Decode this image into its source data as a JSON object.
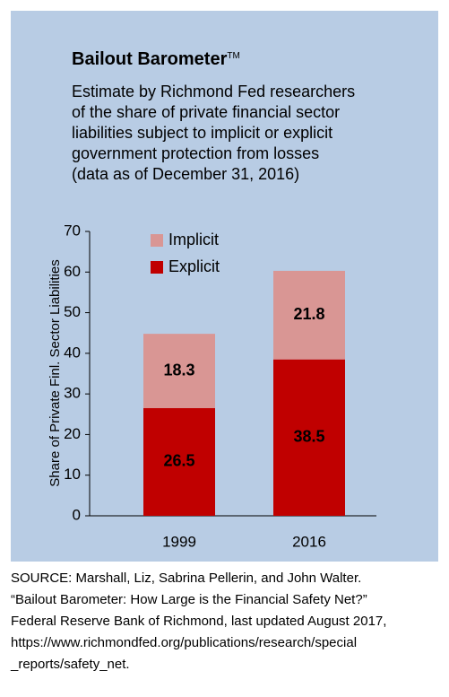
{
  "chart_data": {
    "type": "stacked_bar",
    "title": "Bailout Barometer",
    "title_mark": "TM",
    "subtitle": [
      "Estimate by Richmond Fed researchers",
      "of the share of private financial sector",
      "liabilities subject to implicit or explicit",
      "government protection from losses",
      "(data as of December 31, 2016)"
    ],
    "y_label": "Share of Private Finl. Sector Liabilities",
    "categories": [
      "1999",
      "2016"
    ],
    "series": [
      {
        "name": "Explicit",
        "color": "#c00000",
        "values": [
          26.5,
          38.5
        ]
      },
      {
        "name": "Implicit",
        "color": "#d99694",
        "values": [
          18.3,
          21.8
        ]
      }
    ],
    "ylim": [
      0,
      70
    ],
    "yticks": [
      0,
      10,
      20,
      30,
      40,
      50,
      60,
      70
    ],
    "source": [
      "SOURCE: Marshall, Liz, Sabrina Pellerin, and John Walter.",
      "“Bailout Barometer: How Large is the Financial Safety Net?”",
      "Federal Reserve Bank of Richmond, last updated August 2017,",
      "https://www.richmondfed.org/publications/research/special",
      "_reports/safety_net."
    ]
  }
}
